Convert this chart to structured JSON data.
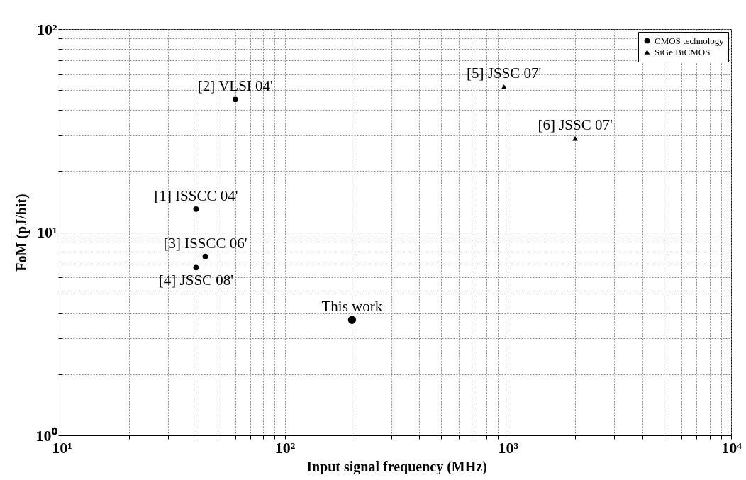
{
  "chart_data": {
    "type": "scatter",
    "xlabel": "Input signal frequency (MHz)",
    "ylabel": "FoM (pJ/bit)",
    "log": "xy",
    "grid": true,
    "legend": "top right",
    "xlim": [
      10,
      10000
    ],
    "ylim": [
      1,
      100
    ],
    "xticks": [
      {
        "value": 10,
        "label": "10¹"
      },
      {
        "value": 20,
        "label": null
      },
      {
        "value": 30,
        "label": null
      },
      {
        "value": 40,
        "label": null
      },
      {
        "value": 50,
        "label": null
      },
      {
        "value": 60,
        "label": null
      },
      {
        "value": 70,
        "label": null
      },
      {
        "value": 80,
        "label": null
      },
      {
        "value": 90,
        "label": null
      },
      {
        "value": 100,
        "label": "10²"
      },
      {
        "value": 200,
        "label": null
      },
      {
        "value": 300,
        "label": null
      },
      {
        "value": 400,
        "label": null
      },
      {
        "value": 500,
        "label": null
      },
      {
        "value": 600,
        "label": null
      },
      {
        "value": 700,
        "label": null
      },
      {
        "value": 800,
        "label": null
      },
      {
        "value": 900,
        "label": null
      },
      {
        "value": 1000,
        "label": "10³"
      },
      {
        "value": 2000,
        "label": null
      },
      {
        "value": 3000,
        "label": null
      },
      {
        "value": 4000,
        "label": null
      },
      {
        "value": 5000,
        "label": null
      },
      {
        "value": 6000,
        "label": null
      },
      {
        "value": 7000,
        "label": null
      },
      {
        "value": 8000,
        "label": null
      },
      {
        "value": 9000,
        "label": null
      },
      {
        "value": 10000,
        "label": "10⁴"
      }
    ],
    "yticks": [
      {
        "value": 1,
        "label": "10⁰"
      },
      {
        "value": 2,
        "label": null
      },
      {
        "value": 3,
        "label": null
      },
      {
        "value": 4,
        "label": null
      },
      {
        "value": 5,
        "label": null
      },
      {
        "value": 6,
        "label": null
      },
      {
        "value": 7,
        "label": null
      },
      {
        "value": 8,
        "label": null
      },
      {
        "value": 9,
        "label": null
      },
      {
        "value": 10,
        "label": "10¹"
      },
      {
        "value": 20,
        "label": null
      },
      {
        "value": 30,
        "label": null
      },
      {
        "value": 40,
        "label": null
      },
      {
        "value": 50,
        "label": null
      },
      {
        "value": 60,
        "label": null
      },
      {
        "value": 70,
        "label": null
      },
      {
        "value": 80,
        "label": null
      },
      {
        "value": 90,
        "label": null
      },
      {
        "value": 100,
        "label": "10²"
      }
    ],
    "series": [
      {
        "name": "CMOS technology",
        "color": "#000000",
        "marker": "circle",
        "x": [
          40,
          60,
          44,
          40
        ],
        "values": [
          13,
          45,
          7.6,
          6.7
        ]
      },
      {
        "name": "SiGe BiCMOS",
        "color": "#000000",
        "marker": "triangle",
        "x": [
          960,
          2000
        ],
        "values": [
          52,
          29
        ]
      },
      {
        "color": "#000000",
        "marker": "circle",
        "x": [
          200
        ],
        "values": [
          3.7
        ]
      }
    ],
    "annotations": [
      {
        "text": "[1] ISSCC 04'",
        "x": 40,
        "y": 13
      },
      {
        "text": "[2] VLSI 04'",
        "x": 60,
        "y": 45
      },
      {
        "text": "[3] ISSCC 06'",
        "x": 44,
        "y": 7.6
      },
      {
        "text": "[4] JSSC 08'",
        "x": 40,
        "y": 6.7
      },
      {
        "text": "[5] JSSC 07'",
        "x": 960,
        "y": 52
      },
      {
        "text": "[6] JSSC 07'",
        "x": 2000,
        "y": 29
      },
      {
        "text": "This work",
        "x": 200,
        "y": 3.7
      }
    ]
  }
}
